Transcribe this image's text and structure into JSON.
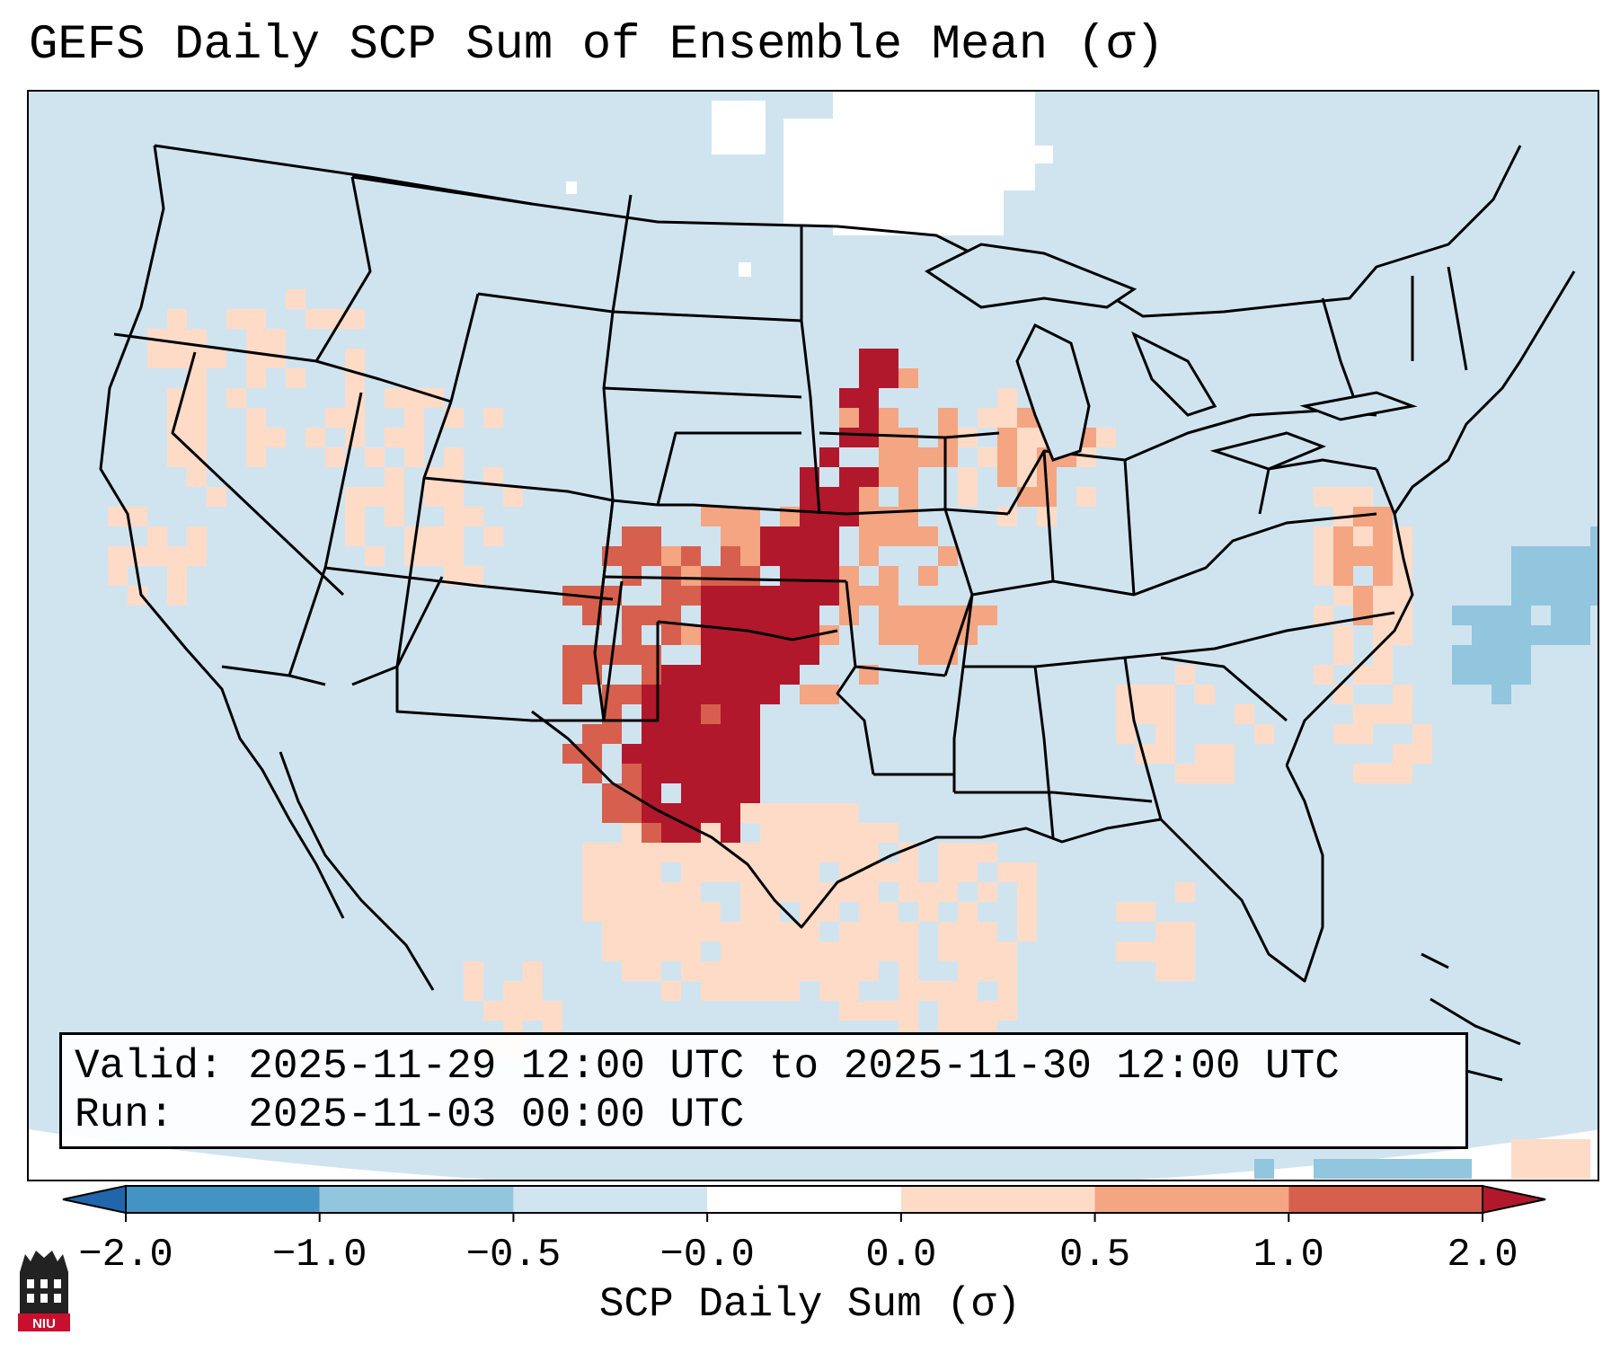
{
  "title": "GEFS Daily SCP Sum of Ensemble Mean (σ)",
  "info": {
    "valid_label": "Valid:",
    "valid_value": "2025-11-29 12:00 UTC to 2025-11-30 12:00 UTC",
    "run_label": "Run:",
    "run_value": "2025-11-03 00:00 UTC"
  },
  "colorbar": {
    "label": "SCP Daily Sum (σ)",
    "ticks": [
      "−2.0",
      "−1.0",
      "−0.5",
      "−0.0",
      "0.0",
      "0.5",
      "1.0",
      "2.0"
    ],
    "segment_colors": [
      "#4393c3",
      "#92c5de",
      "#d1e5f0",
      "#fddbc7",
      "#f4a582",
      "#d6604d"
    ],
    "under_color": "#2166ac",
    "over_color": "#b2182b"
  },
  "map": {
    "ocean_color": "#d0e4f0",
    "land_neutral_color": "#d0e4f0",
    "no_data_color": "#ffffff",
    "border_color": "#000000"
  },
  "logo": {
    "text": "NIU"
  }
}
